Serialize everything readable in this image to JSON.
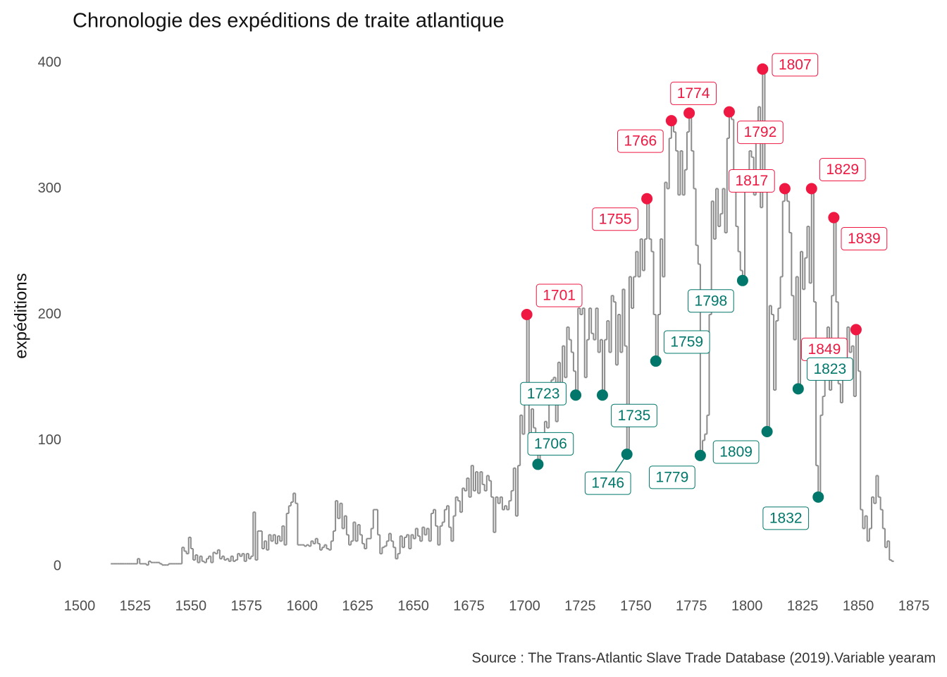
{
  "chart_data": {
    "type": "line",
    "title": "Chronologie des expéditions de traite atlantique",
    "ylabel": "expéditions",
    "caption": "Source : The Trans-Atlantic Slave Trade Database (2019).Variable yearam",
    "color": "#8c8c8c",
    "xlim": [
      1500,
      1875
    ],
    "xticks": [
      1500,
      1525,
      1550,
      1575,
      1600,
      1625,
      1650,
      1675,
      1700,
      1725,
      1750,
      1775,
      1800,
      1825,
      1850,
      1875
    ],
    "ylim": [
      0,
      400
    ],
    "yticks": [
      0,
      100,
      200,
      300,
      400
    ],
    "x": [
      1514,
      1515,
      1516,
      1517,
      1518,
      1519,
      1520,
      1521,
      1522,
      1523,
      1524,
      1525,
      1526,
      1527,
      1528,
      1529,
      1530,
      1531,
      1532,
      1533,
      1534,
      1535,
      1536,
      1537,
      1538,
      1539,
      1540,
      1541,
      1542,
      1543,
      1544,
      1545,
      1546,
      1547,
      1548,
      1549,
      1550,
      1551,
      1552,
      1553,
      1554,
      1555,
      1556,
      1557,
      1558,
      1559,
      1560,
      1561,
      1562,
      1563,
      1564,
      1565,
      1566,
      1567,
      1568,
      1569,
      1570,
      1571,
      1572,
      1573,
      1574,
      1575,
      1576,
      1577,
      1578,
      1579,
      1580,
      1581,
      1582,
      1583,
      1584,
      1585,
      1586,
      1587,
      1588,
      1589,
      1590,
      1591,
      1592,
      1593,
      1594,
      1595,
      1596,
      1597,
      1598,
      1599,
      1600,
      1601,
      1602,
      1603,
      1604,
      1605,
      1606,
      1607,
      1608,
      1609,
      1610,
      1611,
      1612,
      1613,
      1614,
      1615,
      1616,
      1617,
      1618,
      1619,
      1620,
      1621,
      1622,
      1623,
      1624,
      1625,
      1626,
      1627,
      1628,
      1629,
      1630,
      1631,
      1632,
      1633,
      1634,
      1635,
      1636,
      1637,
      1638,
      1639,
      1640,
      1641,
      1642,
      1643,
      1644,
      1645,
      1646,
      1647,
      1648,
      1649,
      1650,
      1651,
      1652,
      1653,
      1654,
      1655,
      1656,
      1657,
      1658,
      1659,
      1660,
      1661,
      1662,
      1663,
      1664,
      1665,
      1666,
      1667,
      1668,
      1669,
      1670,
      1671,
      1672,
      1673,
      1674,
      1675,
      1676,
      1677,
      1678,
      1679,
      1680,
      1681,
      1682,
      1683,
      1684,
      1685,
      1686,
      1687,
      1688,
      1689,
      1690,
      1691,
      1692,
      1693,
      1694,
      1695,
      1696,
      1697,
      1698,
      1699,
      1700,
      1701,
      1702,
      1703,
      1704,
      1705,
      1706,
      1707,
      1708,
      1709,
      1710,
      1711,
      1712,
      1713,
      1714,
      1715,
      1716,
      1717,
      1718,
      1719,
      1720,
      1721,
      1722,
      1723,
      1724,
      1725,
      1726,
      1727,
      1728,
      1729,
      1730,
      1731,
      1732,
      1733,
      1734,
      1735,
      1736,
      1737,
      1738,
      1739,
      1740,
      1741,
      1742,
      1743,
      1744,
      1745,
      1746,
      1747,
      1748,
      1749,
      1750,
      1751,
      1752,
      1753,
      1754,
      1755,
      1756,
      1757,
      1758,
      1759,
      1760,
      1761,
      1762,
      1763,
      1764,
      1765,
      1766,
      1767,
      1768,
      1769,
      1770,
      1771,
      1772,
      1773,
      1774,
      1775,
      1776,
      1777,
      1778,
      1779,
      1780,
      1781,
      1782,
      1783,
      1784,
      1785,
      1786,
      1787,
      1788,
      1789,
      1790,
      1791,
      1792,
      1793,
      1794,
      1795,
      1796,
      1797,
      1798,
      1799,
      1800,
      1801,
      1802,
      1803,
      1804,
      1805,
      1806,
      1807,
      1808,
      1809,
      1810,
      1811,
      1812,
      1813,
      1814,
      1815,
      1816,
      1817,
      1818,
      1819,
      1820,
      1821,
      1822,
      1823,
      1824,
      1825,
      1826,
      1827,
      1828,
      1829,
      1830,
      1831,
      1832,
      1833,
      1834,
      1835,
      1836,
      1837,
      1838,
      1839,
      1840,
      1841,
      1842,
      1843,
      1844,
      1845,
      1846,
      1847,
      1848,
      1849,
      1850,
      1851,
      1852,
      1853,
      1854,
      1855,
      1856,
      1857,
      1858,
      1859,
      1860,
      1861,
      1862,
      1863,
      1864,
      1865
    ],
    "values": [
      2,
      2,
      2,
      2,
      2,
      2,
      2,
      2,
      2,
      2,
      2,
      2,
      6,
      2,
      2,
      2,
      1,
      4,
      3,
      3,
      3,
      3,
      2,
      1,
      1,
      1,
      2,
      2,
      2,
      2,
      2,
      2,
      15,
      12,
      10,
      23,
      14,
      5,
      9,
      3,
      8,
      4,
      3,
      6,
      8,
      3,
      11,
      10,
      13,
      6,
      8,
      5,
      6,
      4,
      8,
      4,
      5,
      10,
      8,
      10,
      4,
      10,
      6,
      8,
      43,
      5,
      28,
      28,
      14,
      20,
      13,
      25,
      20,
      25,
      18,
      24,
      20,
      32,
      17,
      42,
      48,
      51,
      58,
      50,
      17,
      17,
      17,
      16,
      17,
      16,
      20,
      18,
      22,
      18,
      13,
      15,
      17,
      14,
      13,
      20,
      28,
      52,
      38,
      50,
      30,
      40,
      25,
      17,
      20,
      35,
      20,
      33,
      25,
      18,
      14,
      22,
      22,
      30,
      45,
      45,
      25,
      10,
      15,
      16,
      20,
      26,
      20,
      15,
      6,
      10,
      24,
      15,
      23,
      25,
      14,
      25,
      22,
      30,
      24,
      20,
      31,
      25,
      30,
      20,
      42,
      45,
      32,
      17,
      32,
      35,
      45,
      48,
      31,
      20,
      40,
      55,
      52,
      43,
      62,
      60,
      70,
      55,
      80,
      60,
      75,
      58,
      75,
      65,
      60,
      72,
      68,
      55,
      27,
      55,
      50,
      55,
      45,
      48,
      45,
      52,
      60,
      78,
      40,
      80,
      120,
      105,
      140,
      200,
      100,
      125,
      110,
      90,
      81,
      90,
      100,
      115,
      110,
      130,
      148,
      150,
      115,
      162,
      130,
      175,
      150,
      190,
      180,
      170,
      155,
      136,
      205,
      200,
      205,
      150,
      180,
      205,
      185,
      180,
      205,
      170,
      180,
      136,
      180,
      195,
      170,
      215,
      210,
      160,
      200,
      170,
      220,
      175,
      89,
      230,
      205,
      230,
      250,
      230,
      260,
      235,
      260,
      292,
      260,
      250,
      200,
      163,
      200,
      260,
      230,
      305,
      300,
      340,
      354,
      345,
      330,
      295,
      330,
      295,
      315,
      345,
      360,
      330,
      300,
      255,
      240,
      88,
      100,
      105,
      120,
      200,
      290,
      260,
      300,
      270,
      280,
      300,
      265,
      340,
      361,
      355,
      305,
      270,
      250,
      235,
      227,
      300,
      305,
      330,
      325,
      295,
      340,
      365,
      285,
      395,
      300,
      107,
      207,
      200,
      140,
      195,
      205,
      230,
      290,
      300,
      290,
      265,
      215,
      180,
      230,
      141,
      250,
      220,
      245,
      270,
      225,
      300,
      210,
      80,
      55,
      120,
      135,
      165,
      190,
      140,
      215,
      277,
      210,
      145,
      130,
      165,
      165,
      190,
      170,
      175,
      135,
      188,
      155,
      45,
      30,
      40,
      20,
      30,
      55,
      50,
      72,
      55,
      45,
      30,
      15,
      20,
      5,
      4
    ],
    "peaks": {
      "color": "#ee1842",
      "x": [
        1701,
        1755,
        1766,
        1774,
        1792,
        1807,
        1817,
        1829,
        1839,
        1849
      ],
      "values": [
        200,
        292,
        354,
        360,
        361,
        395,
        300,
        300,
        277,
        188
      ]
    },
    "troughs": {
      "color": "#00776a",
      "x": [
        1706,
        1723,
        1735,
        1746,
        1759,
        1779,
        1798,
        1809,
        1823,
        1832
      ],
      "values": [
        81,
        136,
        136,
        89,
        163,
        88,
        227,
        107,
        141,
        55
      ]
    }
  }
}
